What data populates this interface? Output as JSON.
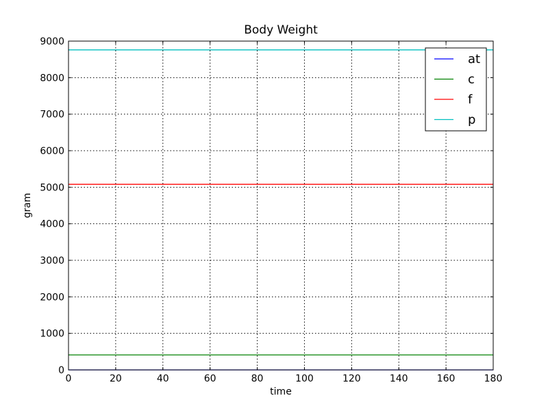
{
  "chart_data": {
    "type": "line",
    "title": "Body Weight",
    "xlabel": "time",
    "ylabel": "gram",
    "xlim": [
      0,
      180
    ],
    "ylim": [
      0,
      9000
    ],
    "xticks": [
      0,
      20,
      40,
      60,
      80,
      100,
      120,
      140,
      160,
      180
    ],
    "yticks": [
      0,
      1000,
      2000,
      3000,
      4000,
      5000,
      6000,
      7000,
      8000,
      9000
    ],
    "grid": true,
    "legend_position": "top-right",
    "x": [
      0,
      180
    ],
    "series": [
      {
        "name": "at",
        "color": "#0000ff",
        "values": [
          0,
          0
        ]
      },
      {
        "name": "c",
        "color": "#008000",
        "values": [
          410,
          410
        ]
      },
      {
        "name": "f",
        "color": "#ff0000",
        "values": [
          5080,
          5080
        ]
      },
      {
        "name": "p",
        "color": "#00bfbf",
        "values": [
          8760,
          8760
        ]
      }
    ]
  }
}
